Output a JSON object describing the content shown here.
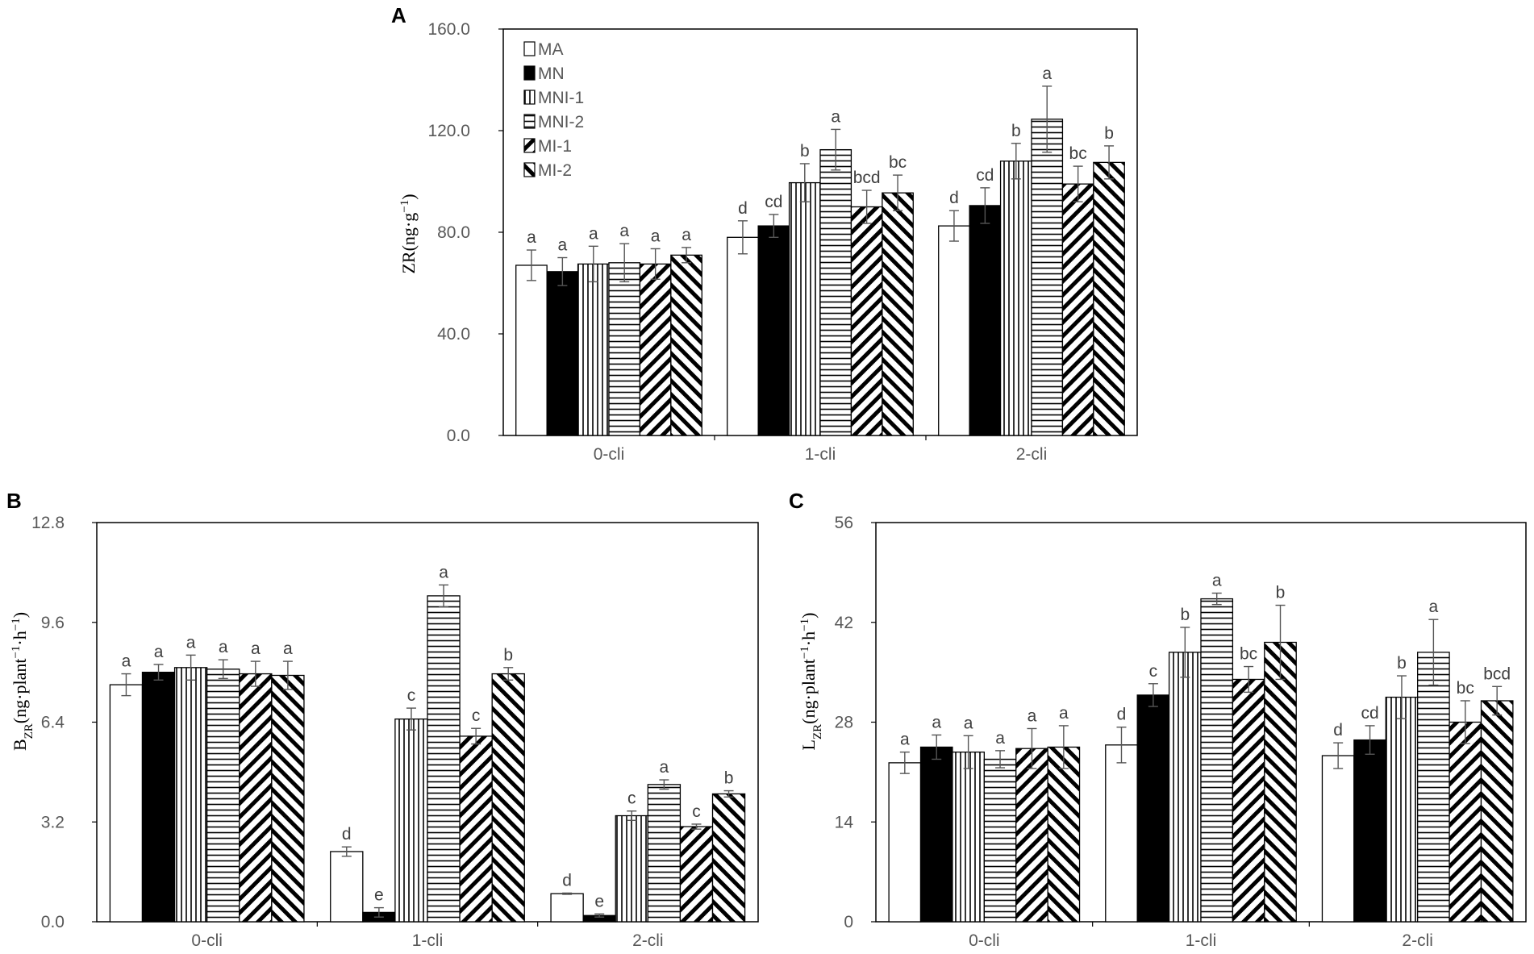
{
  "figure": {
    "legend": [
      {
        "name": "MA",
        "pattern": "empty"
      },
      {
        "name": "MN",
        "pattern": "solid"
      },
      {
        "name": "MNI-1",
        "pattern": "vertical"
      },
      {
        "name": "MNI-2",
        "pattern": "horizontal"
      },
      {
        "name": "MI-1",
        "pattern": "backdiag"
      },
      {
        "name": "MI-2",
        "pattern": "forwarddiag"
      }
    ],
    "colors": {
      "fill_dark": "#000000",
      "axis": "#000000",
      "tick_text": "#595959",
      "background": "#ffffff"
    }
  },
  "chart_data": [
    {
      "panel": "A",
      "type": "bar",
      "title": "",
      "xlabel": "",
      "ylabel": "ZR(ng·g⁻¹)",
      "ylabel_parts": {
        "main": "ZR(ng·g",
        "sup": "−1",
        "tail": ")"
      },
      "ylim": [
        0,
        160
      ],
      "yticks": [
        "0.0",
        "40.0",
        "80.0",
        "120.0",
        "160.0"
      ],
      "categories": [
        "0-cli",
        "1-cli",
        "2-cli"
      ],
      "legend_placement": "top-left",
      "series": [
        {
          "name": "MA",
          "values": [
            67,
            78,
            82.5
          ],
          "errors": [
            6,
            6.5,
            6
          ],
          "letters": [
            "a",
            "d",
            "d"
          ]
        },
        {
          "name": "MN",
          "values": [
            64.5,
            82.5,
            90.5
          ],
          "errors": [
            5.5,
            4.5,
            7
          ],
          "letters": [
            "a",
            "cd",
            "cd"
          ]
        },
        {
          "name": "MNI-1",
          "values": [
            67.5,
            99.5,
            108
          ],
          "errors": [
            7,
            7.5,
            7
          ],
          "letters": [
            "a",
            "b",
            "b"
          ]
        },
        {
          "name": "MNI-2",
          "values": [
            68,
            112.5,
            124.5
          ],
          "errors": [
            7.5,
            8,
            13
          ],
          "letters": [
            "a",
            "a",
            "a"
          ]
        },
        {
          "name": "MI-1",
          "values": [
            67.5,
            90,
            99
          ],
          "errors": [
            6,
            6.5,
            7
          ],
          "letters": [
            "a",
            "bcd",
            "bc"
          ]
        },
        {
          "name": "MI-2",
          "values": [
            71,
            95.5,
            107.5
          ],
          "errors": [
            3,
            7,
            6.5
          ],
          "letters": [
            "a",
            "bc",
            "b"
          ]
        }
      ]
    },
    {
      "panel": "B",
      "type": "bar",
      "title": "",
      "xlabel": "",
      "ylabel": "B_ZR(ng·plant⁻¹·h⁻¹)",
      "ylabel_parts": {
        "main": "B",
        "sub": "ZR",
        "mid": "(ng·plant",
        "sup1": "−1",
        "mid2": "·h",
        "sup2": "−1",
        "tail": ")"
      },
      "ylim": [
        0,
        12.8
      ],
      "yticks": [
        "0.0",
        "3.2",
        "6.4",
        "9.6",
        "12.8"
      ],
      "categories": [
        "0-cli",
        "1-cli",
        "2-cli"
      ],
      "series": [
        {
          "name": "MA",
          "values": [
            7.6,
            2.25,
            0.9
          ],
          "errors": [
            0.35,
            0.15,
            0.02
          ],
          "letters": [
            "a",
            "d",
            "d"
          ]
        },
        {
          "name": "MN",
          "values": [
            8.0,
            0.3,
            0.2
          ],
          "errors": [
            0.25,
            0.15,
            0.05
          ],
          "letters": [
            "a",
            "e",
            "e"
          ]
        },
        {
          "name": "MNI-1",
          "values": [
            8.15,
            6.5,
            3.4
          ],
          "errors": [
            0.4,
            0.35,
            0.15
          ],
          "letters": [
            "a",
            "c",
            "c"
          ]
        },
        {
          "name": "MNI-2",
          "values": [
            8.1,
            10.45,
            4.4
          ],
          "errors": [
            0.3,
            0.35,
            0.15
          ],
          "letters": [
            "a",
            "a",
            "a"
          ]
        },
        {
          "name": "MI-1",
          "values": [
            7.95,
            5.95,
            3.05
          ],
          "errors": [
            0.4,
            0.25,
            0.08
          ],
          "letters": [
            "a",
            "c",
            "c"
          ]
        },
        {
          "name": "MI-2",
          "values": [
            7.9,
            7.95,
            4.1
          ],
          "errors": [
            0.45,
            0.2,
            0.1
          ],
          "letters": [
            "a",
            "b",
            "b"
          ]
        }
      ]
    },
    {
      "panel": "C",
      "type": "bar",
      "title": "",
      "xlabel": "",
      "ylabel": "L_ZR(ng·plant⁻¹·h⁻¹)",
      "ylabel_parts": {
        "main": "L",
        "sub": "ZR",
        "mid": "(ng·plant",
        "sup1": "−1",
        "mid2": "·h",
        "sup2": "−1",
        "tail": ")"
      },
      "ylim": [
        0,
        56
      ],
      "yticks": [
        "0",
        "14",
        "28",
        "42",
        "56"
      ],
      "categories": [
        "0-cli",
        "1-cli",
        "2-cli"
      ],
      "series": [
        {
          "name": "MA",
          "values": [
            22.3,
            24.8,
            23.3
          ],
          "errors": [
            1.5,
            2.5,
            1.8
          ],
          "letters": [
            "a",
            "d",
            "d"
          ]
        },
        {
          "name": "MN",
          "values": [
            24.5,
            31.8,
            25.5
          ],
          "errors": [
            1.7,
            1.6,
            2.0
          ],
          "letters": [
            "a",
            "c",
            "cd"
          ]
        },
        {
          "name": "MNI-1",
          "values": [
            23.8,
            37.8,
            31.5
          ],
          "errors": [
            2.3,
            3.5,
            3.0
          ],
          "letters": [
            "a",
            "b",
            "b"
          ]
        },
        {
          "name": "MNI-2",
          "values": [
            22.8,
            45.3,
            37.8
          ],
          "errors": [
            1.2,
            0.8,
            4.6
          ],
          "letters": [
            "a",
            "a",
            "a"
          ]
        },
        {
          "name": "MI-1",
          "values": [
            24.3,
            34.0,
            28.0
          ],
          "errors": [
            2.8,
            1.8,
            3.0
          ],
          "letters": [
            "a",
            "bc",
            "bc"
          ]
        },
        {
          "name": "MI-2",
          "values": [
            24.5,
            39.2,
            31.0
          ],
          "errors": [
            3.0,
            5.2,
            2.0
          ],
          "letters": [
            "a",
            "b",
            "bcd"
          ]
        }
      ]
    }
  ],
  "panels": [
    {
      "letter": "A"
    },
    {
      "letter": "B"
    },
    {
      "letter": "C"
    }
  ]
}
